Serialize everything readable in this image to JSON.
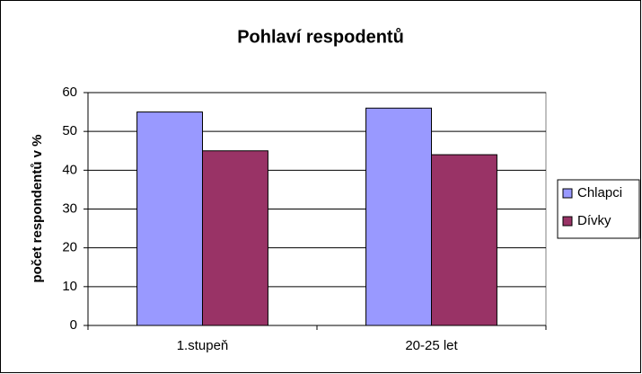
{
  "chart_data": {
    "type": "bar",
    "title": "Pohlaví respodentů",
    "y_label": "počet respondentů v %",
    "categories": [
      "1.stupeň",
      "20-25 let"
    ],
    "series": [
      {
        "name": "Chlapci",
        "color": "#9999ff",
        "values": [
          55,
          56
        ]
      },
      {
        "name": "Dívky",
        "color": "#993366",
        "values": [
          45,
          44
        ]
      }
    ],
    "ylim": [
      0,
      60
    ],
    "yticks": [
      0,
      10,
      20,
      30,
      40,
      50,
      60
    ],
    "grid": true,
    "legend": "right"
  }
}
